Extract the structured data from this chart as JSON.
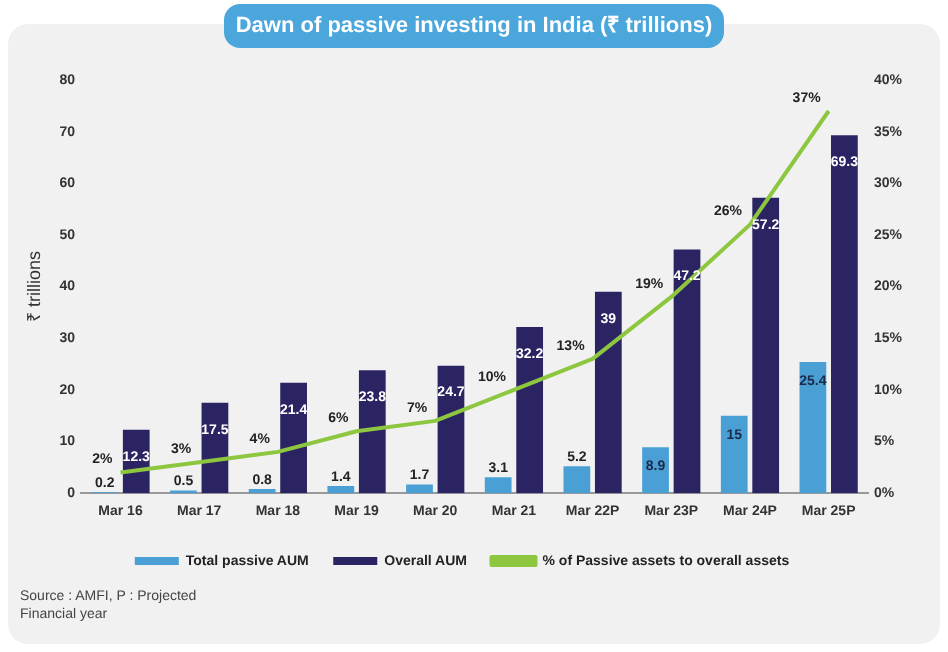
{
  "chart_data": {
    "type": "bar",
    "title": "Dawn of passive investing in India (₹ trillions)",
    "ylabel": "₹ trillions",
    "categories": [
      "Mar 16",
      "Mar 17",
      "Mar 18",
      "Mar 19",
      "Mar 20",
      "Mar 21",
      "Mar 22P",
      "Mar 23P",
      "Mar 24P",
      "Mar 25P"
    ],
    "series": [
      {
        "name": "Total passive AUM",
        "color": "#4aa0d5",
        "values": [
          0.2,
          0.5,
          0.8,
          1.4,
          1.7,
          3.1,
          5.2,
          8.9,
          15,
          25.4
        ]
      },
      {
        "name": "Overall AUM",
        "color": "#2b2463",
        "values": [
          12.3,
          17.5,
          21.4,
          23.8,
          24.7,
          32.2,
          39,
          47.2,
          57.2,
          69.3
        ]
      },
      {
        "name": "% of Passive assets to overall assets",
        "type": "line",
        "axis": "y2",
        "color": "#8dc63f",
        "values": [
          2,
          3,
          4,
          6,
          7,
          10,
          13,
          19,
          26,
          37
        ],
        "value_labels": [
          "2%",
          "3%",
          "4%",
          "6%",
          "7%",
          "10%",
          "13%",
          "19%",
          "26%",
          "37%"
        ]
      }
    ],
    "ylim": [
      0,
      80
    ],
    "yticks": [
      0,
      10,
      20,
      30,
      40,
      50,
      60,
      70,
      80
    ],
    "y2lim": [
      0,
      40
    ],
    "y2ticks": [
      {
        "value": 0,
        "label": "0%"
      },
      {
        "value": 5,
        "label": "5%"
      },
      {
        "value": 10,
        "label": "10%"
      },
      {
        "value": 15,
        "label": "15%"
      },
      {
        "value": 20,
        "label": "20%"
      },
      {
        "value": 25,
        "label": "25%"
      },
      {
        "value": 30,
        "label": "30%"
      },
      {
        "value": 35,
        "label": "35%"
      },
      {
        "value": 40,
        "label": "40%"
      }
    ],
    "data_labels": true,
    "legend": "bottom",
    "grid": false,
    "marker": "none",
    "annotations": [
      "Source : AMFI, P : Projected Financial year"
    ]
  }
}
